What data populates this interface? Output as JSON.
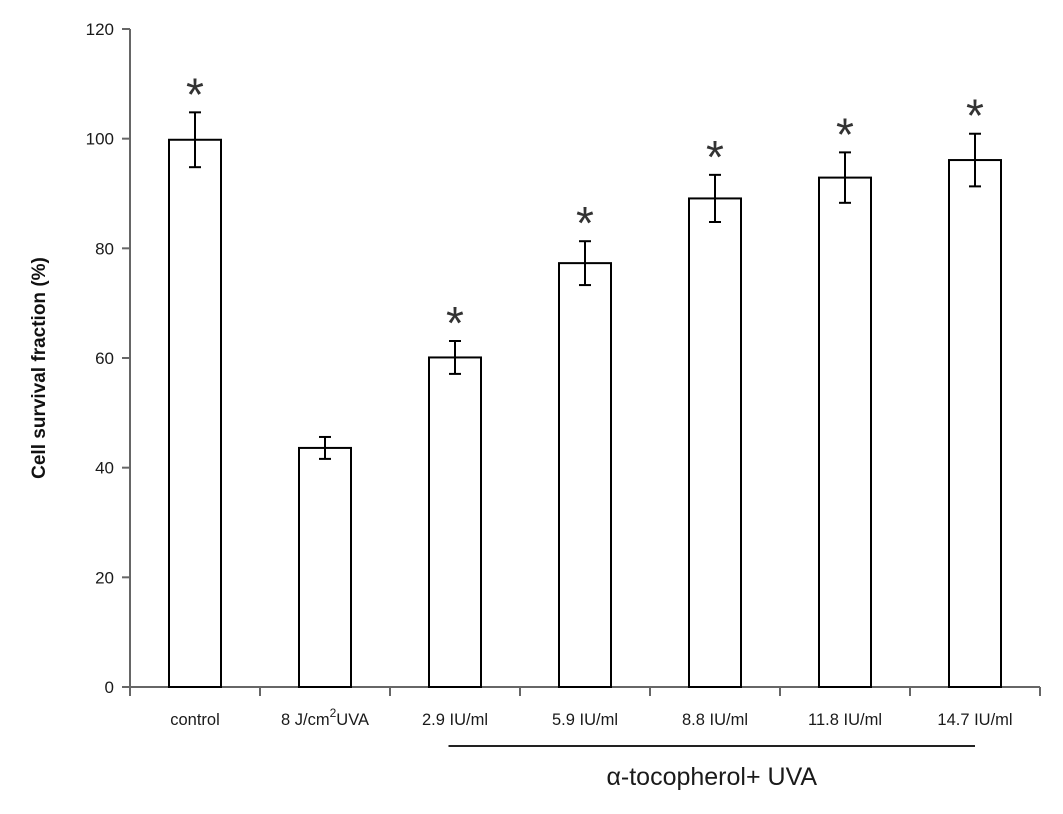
{
  "chart_data": {
    "type": "bar",
    "title": "",
    "xlabel": "",
    "ylabel": "Cell survival fraction (%)",
    "ylim": [
      0,
      120
    ],
    "yticks": [
      0,
      20,
      40,
      60,
      80,
      100,
      120
    ],
    "grid": false,
    "categories": [
      "control",
      "8 J/cm",
      "2.9 IU/ml",
      "5.9 IU/ml",
      "8.8 IU/ml",
      "11.8 IU/ml",
      "14.7 IU/ml"
    ],
    "category_superscript": {
      "index": 1,
      "sup": "2",
      "suffix": "UVA"
    },
    "values": [
      99.8,
      43.6,
      60.1,
      77.3,
      89.1,
      92.9,
      96.1
    ],
    "errors": [
      5.0,
      2.0,
      3.0,
      4.0,
      4.3,
      4.6,
      4.8
    ],
    "significance": [
      "*",
      "",
      "*",
      "*",
      "*",
      "*",
      "*"
    ],
    "group_label": {
      "text": "α-tocopherol+ UVA",
      "from_index": 2,
      "to_index": 6
    },
    "colors": {
      "bar_fill": "#ffffff",
      "bar_stroke": "#000000",
      "axis": "#666666",
      "marker": "#333333"
    }
  }
}
